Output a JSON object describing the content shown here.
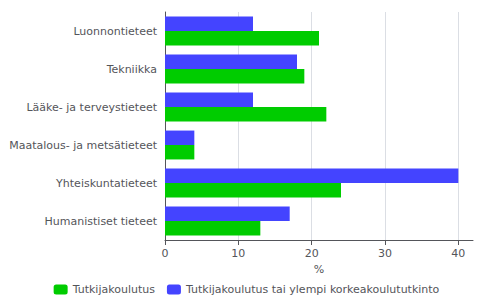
{
  "chart_data": {
    "type": "bar",
    "orientation": "horizontal",
    "categories": [
      "Humanistiset tieteet",
      "Yhteiskuntatieteet",
      "Maatalous- ja metsätieteet",
      "Lääke- ja terveystieteet",
      "Tekniikka",
      "Luonnontieteet"
    ],
    "series": [
      {
        "name": "Tutkijakoulutus",
        "color": "#00cc00",
        "values": [
          13,
          24,
          4,
          22,
          19,
          21
        ]
      },
      {
        "name": "Tutkijakoulutus tai ylempi korkeakoulututkinto",
        "color": "#4444ff",
        "values": [
          17,
          40,
          4,
          12,
          18,
          12
        ]
      }
    ],
    "xlabel": "%",
    "xlim": [
      0,
      42
    ],
    "xticks": [
      0,
      10,
      20,
      30,
      40
    ],
    "grid": true,
    "legend": "bottom"
  }
}
